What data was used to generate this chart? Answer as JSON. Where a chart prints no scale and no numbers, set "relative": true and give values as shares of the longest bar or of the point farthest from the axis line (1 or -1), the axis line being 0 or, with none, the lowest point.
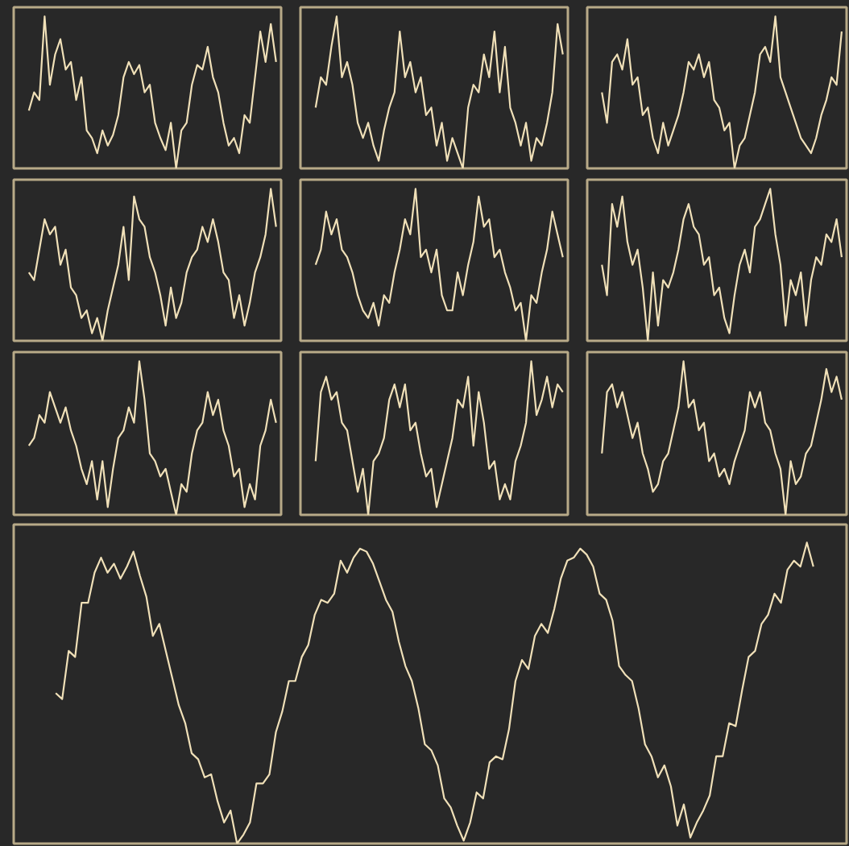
{
  "chart_data": [
    {
      "type": "line",
      "relative": true,
      "color": "#f0e0b8",
      "categories": [
        null,
        null,
        null,
        null,
        null,
        null,
        null,
        null,
        null,
        null,
        null,
        null,
        null,
        null,
        null,
        null,
        null,
        null,
        null,
        null,
        null,
        null,
        null,
        null,
        null,
        null,
        null,
        null,
        null,
        null,
        null,
        null,
        null,
        null,
        null,
        null,
        null,
        null,
        null,
        null,
        null,
        null,
        null,
        null,
        null,
        null,
        null,
        null
      ],
      "values": [
        0.38,
        0.5,
        0.45,
        1.0,
        0.55,
        0.75,
        0.85,
        0.65,
        0.7,
        0.45,
        0.6,
        0.25,
        0.2,
        0.1,
        0.25,
        0.15,
        0.22,
        0.35,
        0.6,
        0.7,
        0.62,
        0.68,
        0.5,
        0.55,
        0.3,
        0.2,
        0.12,
        0.3,
        0.0,
        0.25,
        0.3,
        0.55,
        0.68,
        0.65,
        0.8,
        0.6,
        0.5,
        0.3,
        0.15,
        0.2,
        0.1,
        0.35,
        0.3,
        0.6,
        0.9,
        0.7,
        0.95,
        0.7
      ]
    },
    {
      "type": "line",
      "relative": true,
      "color": "#f0e0b8",
      "categories": [
        null,
        null,
        null,
        null,
        null,
        null,
        null,
        null,
        null,
        null,
        null,
        null,
        null,
        null,
        null,
        null,
        null,
        null,
        null,
        null,
        null,
        null,
        null,
        null,
        null,
        null,
        null,
        null,
        null,
        null,
        null,
        null,
        null,
        null,
        null,
        null,
        null,
        null,
        null,
        null,
        null,
        null,
        null,
        null,
        null,
        null,
        null,
        null
      ],
      "values": [
        0.4,
        0.6,
        0.55,
        0.8,
        1.0,
        0.6,
        0.7,
        0.55,
        0.3,
        0.2,
        0.3,
        0.15,
        0.05,
        0.25,
        0.4,
        0.5,
        0.9,
        0.6,
        0.7,
        0.5,
        0.6,
        0.35,
        0.4,
        0.15,
        0.3,
        0.05,
        0.2,
        0.1,
        0.0,
        0.4,
        0.55,
        0.5,
        0.75,
        0.6,
        0.9,
        0.5,
        0.8,
        0.4,
        0.3,
        0.15,
        0.3,
        0.05,
        0.2,
        0.15,
        0.3,
        0.5,
        0.95,
        0.75
      ]
    },
    {
      "type": "line",
      "relative": true,
      "color": "#f0e0b8",
      "categories": [
        null,
        null,
        null,
        null,
        null,
        null,
        null,
        null,
        null,
        null,
        null,
        null,
        null,
        null,
        null,
        null,
        null,
        null,
        null,
        null,
        null,
        null,
        null,
        null,
        null,
        null,
        null,
        null,
        null,
        null,
        null,
        null,
        null,
        null,
        null,
        null,
        null,
        null,
        null,
        null,
        null,
        null,
        null,
        null,
        null,
        null,
        null,
        null
      ],
      "values": [
        0.5,
        0.3,
        0.7,
        0.75,
        0.65,
        0.85,
        0.55,
        0.6,
        0.35,
        0.4,
        0.2,
        0.1,
        0.3,
        0.15,
        0.25,
        0.35,
        0.5,
        0.7,
        0.65,
        0.75,
        0.6,
        0.7,
        0.45,
        0.4,
        0.25,
        0.3,
        0.0,
        0.15,
        0.2,
        0.35,
        0.5,
        0.75,
        0.8,
        0.7,
        1.0,
        0.6,
        0.5,
        0.4,
        0.3,
        0.2,
        0.15,
        0.1,
        0.2,
        0.35,
        0.45,
        0.6,
        0.55,
        0.9
      ]
    },
    {
      "type": "line",
      "relative": true,
      "color": "#f0e0b8",
      "categories": [
        null,
        null,
        null,
        null,
        null,
        null,
        null,
        null,
        null,
        null,
        null,
        null,
        null,
        null,
        null,
        null,
        null,
        null,
        null,
        null,
        null,
        null,
        null,
        null,
        null,
        null,
        null,
        null,
        null,
        null,
        null,
        null,
        null,
        null,
        null,
        null,
        null,
        null,
        null,
        null,
        null,
        null,
        null,
        null,
        null,
        null,
        null,
        null
      ],
      "values": [
        0.45,
        0.4,
        0.6,
        0.8,
        0.7,
        0.75,
        0.5,
        0.6,
        0.35,
        0.3,
        0.15,
        0.2,
        0.05,
        0.15,
        0.0,
        0.2,
        0.35,
        0.5,
        0.75,
        0.4,
        0.95,
        0.8,
        0.75,
        0.55,
        0.45,
        0.3,
        0.1,
        0.35,
        0.15,
        0.25,
        0.45,
        0.55,
        0.6,
        0.75,
        0.65,
        0.8,
        0.65,
        0.45,
        0.4,
        0.15,
        0.3,
        0.1,
        0.25,
        0.45,
        0.55,
        0.7,
        1.0,
        0.75
      ]
    },
    {
      "type": "line",
      "relative": true,
      "color": "#f0e0b8",
      "categories": [
        null,
        null,
        null,
        null,
        null,
        null,
        null,
        null,
        null,
        null,
        null,
        null,
        null,
        null,
        null,
        null,
        null,
        null,
        null,
        null,
        null,
        null,
        null,
        null,
        null,
        null,
        null,
        null,
        null,
        null,
        null,
        null,
        null,
        null,
        null,
        null,
        null,
        null,
        null,
        null,
        null,
        null,
        null,
        null,
        null,
        null,
        null,
        null
      ],
      "values": [
        0.5,
        0.6,
        0.85,
        0.7,
        0.8,
        0.6,
        0.55,
        0.45,
        0.3,
        0.2,
        0.15,
        0.25,
        0.1,
        0.3,
        0.25,
        0.45,
        0.6,
        0.8,
        0.7,
        1.0,
        0.55,
        0.6,
        0.45,
        0.6,
        0.3,
        0.2,
        0.2,
        0.45,
        0.3,
        0.5,
        0.65,
        0.95,
        0.75,
        0.8,
        0.55,
        0.6,
        0.45,
        0.35,
        0.2,
        0.25,
        0.0,
        0.3,
        0.25,
        0.45,
        0.6,
        0.85,
        0.7,
        0.55
      ]
    },
    {
      "type": "line",
      "relative": true,
      "color": "#f0e0b8",
      "categories": [
        null,
        null,
        null,
        null,
        null,
        null,
        null,
        null,
        null,
        null,
        null,
        null,
        null,
        null,
        null,
        null,
        null,
        null,
        null,
        null,
        null,
        null,
        null,
        null,
        null,
        null,
        null,
        null,
        null,
        null,
        null,
        null,
        null,
        null,
        null,
        null,
        null,
        null,
        null,
        null,
        null,
        null,
        null,
        null,
        null,
        null,
        null,
        null
      ],
      "values": [
        0.5,
        0.3,
        0.9,
        0.75,
        0.95,
        0.65,
        0.5,
        0.6,
        0.35,
        0.0,
        0.45,
        0.1,
        0.4,
        0.35,
        0.45,
        0.6,
        0.8,
        0.9,
        0.75,
        0.7,
        0.5,
        0.55,
        0.3,
        0.35,
        0.15,
        0.05,
        0.3,
        0.5,
        0.6,
        0.45,
        0.75,
        0.8,
        0.9,
        1.0,
        0.7,
        0.5,
        0.1,
        0.4,
        0.3,
        0.45,
        0.1,
        0.4,
        0.55,
        0.5,
        0.7,
        0.65,
        0.8,
        0.55
      ]
    },
    {
      "type": "line",
      "relative": true,
      "color": "#f0e0b8",
      "categories": [
        null,
        null,
        null,
        null,
        null,
        null,
        null,
        null,
        null,
        null,
        null,
        null,
        null,
        null,
        null,
        null,
        null,
        null,
        null,
        null,
        null,
        null,
        null,
        null,
        null,
        null,
        null,
        null,
        null,
        null,
        null,
        null,
        null,
        null,
        null,
        null,
        null,
        null,
        null,
        null,
        null,
        null,
        null,
        null,
        null,
        null,
        null,
        null
      ],
      "values": [
        0.45,
        0.5,
        0.65,
        0.6,
        0.8,
        0.7,
        0.6,
        0.7,
        0.55,
        0.45,
        0.3,
        0.2,
        0.35,
        0.1,
        0.35,
        0.05,
        0.3,
        0.5,
        0.55,
        0.7,
        0.6,
        1.0,
        0.75,
        0.4,
        0.35,
        0.25,
        0.3,
        0.15,
        0.0,
        0.2,
        0.15,
        0.4,
        0.55,
        0.6,
        0.8,
        0.65,
        0.75,
        0.55,
        0.45,
        0.25,
        0.3,
        0.05,
        0.2,
        0.1,
        0.45,
        0.55,
        0.75,
        0.6
      ]
    },
    {
      "type": "line",
      "relative": true,
      "color": "#f0e0b8",
      "categories": [
        null,
        null,
        null,
        null,
        null,
        null,
        null,
        null,
        null,
        null,
        null,
        null,
        null,
        null,
        null,
        null,
        null,
        null,
        null,
        null,
        null,
        null,
        null,
        null,
        null,
        null,
        null,
        null,
        null,
        null,
        null,
        null,
        null,
        null,
        null,
        null,
        null,
        null,
        null,
        null,
        null,
        null,
        null,
        null,
        null,
        null,
        null,
        null
      ],
      "values": [
        0.35,
        0.8,
        0.9,
        0.75,
        0.8,
        0.6,
        0.55,
        0.35,
        0.15,
        0.3,
        0.0,
        0.35,
        0.4,
        0.5,
        0.75,
        0.85,
        0.7,
        0.85,
        0.55,
        0.6,
        0.4,
        0.25,
        0.3,
        0.05,
        0.2,
        0.35,
        0.5,
        0.75,
        0.7,
        0.9,
        0.45,
        0.8,
        0.6,
        0.3,
        0.35,
        0.1,
        0.2,
        0.1,
        0.35,
        0.45,
        0.6,
        1.0,
        0.65,
        0.75,
        0.9,
        0.7,
        0.85,
        0.8
      ]
    },
    {
      "type": "line",
      "relative": true,
      "color": "#f0e0b8",
      "categories": [
        null,
        null,
        null,
        null,
        null,
        null,
        null,
        null,
        null,
        null,
        null,
        null,
        null,
        null,
        null,
        null,
        null,
        null,
        null,
        null,
        null,
        null,
        null,
        null,
        null,
        null,
        null,
        null,
        null,
        null,
        null,
        null,
        null,
        null,
        null,
        null,
        null,
        null,
        null,
        null,
        null,
        null,
        null,
        null,
        null,
        null,
        null,
        null
      ],
      "values": [
        0.4,
        0.8,
        0.85,
        0.7,
        0.8,
        0.65,
        0.5,
        0.6,
        0.4,
        0.3,
        0.15,
        0.2,
        0.35,
        0.4,
        0.55,
        0.7,
        1.0,
        0.7,
        0.75,
        0.55,
        0.6,
        0.35,
        0.4,
        0.25,
        0.3,
        0.2,
        0.35,
        0.45,
        0.55,
        0.8,
        0.7,
        0.8,
        0.6,
        0.55,
        0.4,
        0.3,
        0.0,
        0.35,
        0.2,
        0.25,
        0.4,
        0.45,
        0.6,
        0.75,
        0.95,
        0.8,
        0.9,
        0.75
      ]
    },
    {
      "type": "line",
      "relative": true,
      "color": "#f0e0b8",
      "categories": [
        null,
        null,
        null,
        null,
        null,
        null,
        null,
        null,
        null,
        null,
        null,
        null,
        null,
        null,
        null,
        null,
        null,
        null,
        null,
        null,
        null,
        null,
        null,
        null,
        null,
        null,
        null,
        null,
        null,
        null,
        null,
        null,
        null,
        null,
        null,
        null,
        null,
        null,
        null,
        null,
        null,
        null,
        null,
        null,
        null,
        null,
        null,
        null,
        null,
        null,
        null,
        null,
        null,
        null,
        null,
        null,
        null,
        null,
        null,
        null,
        null,
        null,
        null,
        null,
        null,
        null,
        null,
        null,
        null,
        null,
        null,
        null,
        null,
        null,
        null,
        null,
        null,
        null,
        null,
        null,
        null,
        null,
        null,
        null,
        null,
        null,
        null,
        null,
        null,
        null,
        null,
        null,
        null,
        null,
        null,
        null,
        null,
        null,
        null,
        null,
        null,
        null,
        null,
        null,
        null,
        null,
        null,
        null,
        null,
        null,
        null,
        null,
        null,
        null,
        null,
        null,
        null,
        null
      ],
      "values": [
        0.5,
        0.48,
        0.64,
        0.62,
        0.8,
        0.8,
        0.9,
        0.95,
        0.9,
        0.93,
        0.88,
        0.92,
        0.97,
        0.89,
        0.82,
        0.69,
        0.73,
        0.64,
        0.55,
        0.46,
        0.4,
        0.3,
        0.28,
        0.22,
        0.23,
        0.14,
        0.07,
        0.11,
        0.0,
        0.03,
        0.07,
        0.2,
        0.2,
        0.23,
        0.37,
        0.44,
        0.54,
        0.54,
        0.62,
        0.66,
        0.76,
        0.81,
        0.8,
        0.83,
        0.94,
        0.9,
        0.95,
        0.98,
        0.97,
        0.93,
        0.87,
        0.81,
        0.77,
        0.67,
        0.59,
        0.54,
        0.45,
        0.33,
        0.31,
        0.26,
        0.15,
        0.12,
        0.06,
        0.01,
        0.07,
        0.17,
        0.15,
        0.27,
        0.29,
        0.28,
        0.38,
        0.54,
        0.61,
        0.58,
        0.69,
        0.73,
        0.7,
        0.78,
        0.88,
        0.94,
        0.95,
        0.98,
        0.96,
        0.92,
        0.83,
        0.81,
        0.74,
        0.59,
        0.56,
        0.54,
        0.45,
        0.33,
        0.29,
        0.22,
        0.26,
        0.19,
        0.06,
        0.13,
        0.02,
        0.07,
        0.11,
        0.16,
        0.29,
        0.29,
        0.4,
        0.39,
        0.51,
        0.62,
        0.64,
        0.73,
        0.76,
        0.83,
        0.8,
        0.91,
        0.94,
        0.92,
        1.0,
        0.92
      ]
    }
  ]
}
